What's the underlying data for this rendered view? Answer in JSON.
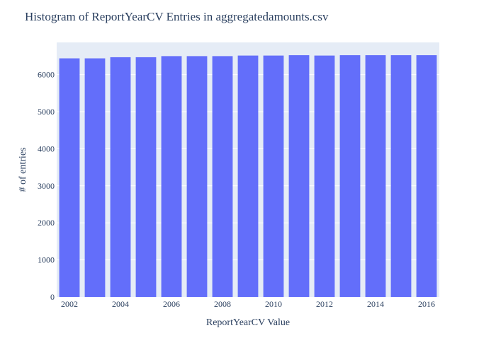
{
  "chart_data": {
    "type": "bar",
    "title": "Histogram of ReportYearCV Entries in aggregatedamounts.csv",
    "xlabel": "ReportYearCV Value",
    "ylabel": "# of entries",
    "categories": [
      2002,
      2003,
      2004,
      2005,
      2006,
      2007,
      2008,
      2009,
      2010,
      2011,
      2012,
      2013,
      2014,
      2015,
      2016
    ],
    "values": [
      6440,
      6440,
      6470,
      6470,
      6500,
      6500,
      6500,
      6515,
      6515,
      6525,
      6515,
      6525,
      6525,
      6525,
      6525
    ],
    "xticks": [
      "2002",
      "2004",
      "2006",
      "2008",
      "2010",
      "2012",
      "2014",
      "2016"
    ],
    "yticks": [
      "0",
      "1000",
      "2000",
      "3000",
      "4000",
      "5000",
      "6000"
    ],
    "ylim": [
      0,
      6870
    ],
    "grid": true,
    "colors": {
      "bar": "#636efa",
      "plot_background": "#e5ecf6",
      "gridline": "#ffffff",
      "text": "#2a3f5f"
    }
  }
}
